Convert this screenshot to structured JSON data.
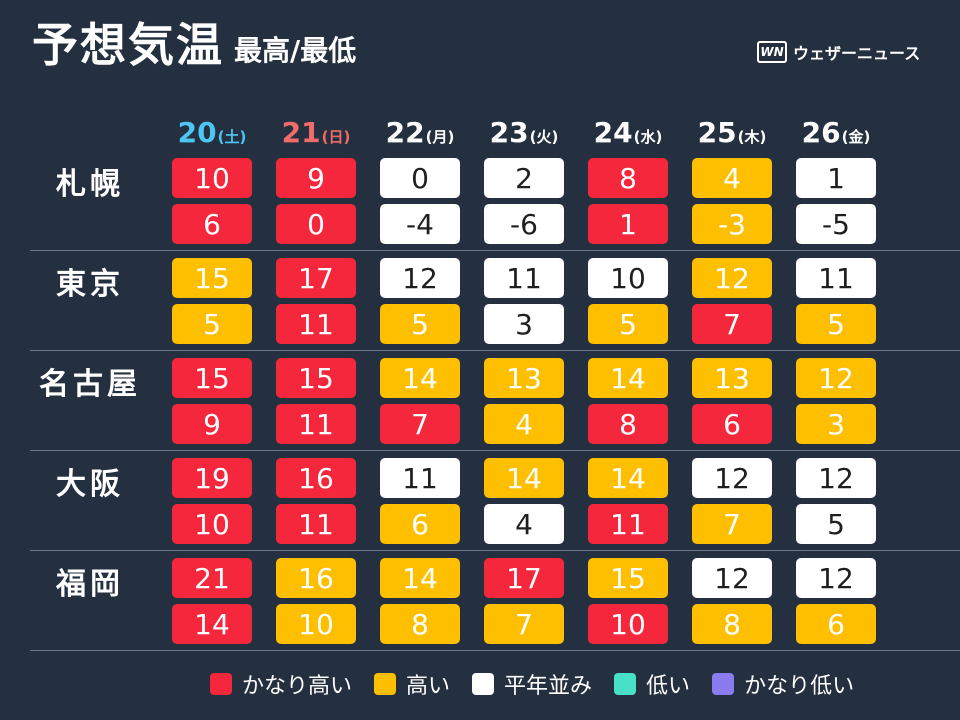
{
  "title": {
    "main": "予想気温",
    "sub": "最高/最低"
  },
  "logo": {
    "mark": "WN",
    "text": "ウェザーニュース"
  },
  "colors": {
    "very_high": "#f5273c",
    "high": "#fdbf00",
    "normal": "#ffffff",
    "low": "#48e0c6",
    "very_low": "#8a7cf0",
    "text_dark": "#1f1f1f",
    "text_light": "#ffffff",
    "saturday": "#4dc6f5",
    "sunday": "#f26b6b",
    "weekday": "#ffffff"
  },
  "days": [
    {
      "num": "20",
      "dow": "(土)",
      "kind": "saturday"
    },
    {
      "num": "21",
      "dow": "(日)",
      "kind": "sunday"
    },
    {
      "num": "22",
      "dow": "(月)",
      "kind": "weekday"
    },
    {
      "num": "23",
      "dow": "(火)",
      "kind": "weekday"
    },
    {
      "num": "24",
      "dow": "(水)",
      "kind": "weekday"
    },
    {
      "num": "25",
      "dow": "(木)",
      "kind": "weekday"
    },
    {
      "num": "26",
      "dow": "(金)",
      "kind": "weekday"
    }
  ],
  "cities": [
    {
      "name": "札幌",
      "max": [
        {
          "v": "10",
          "c": "very_high"
        },
        {
          "v": "9",
          "c": "very_high"
        },
        {
          "v": "0",
          "c": "normal"
        },
        {
          "v": "2",
          "c": "normal"
        },
        {
          "v": "8",
          "c": "very_high"
        },
        {
          "v": "4",
          "c": "high"
        },
        {
          "v": "1",
          "c": "normal"
        }
      ],
      "min": [
        {
          "v": "6",
          "c": "very_high"
        },
        {
          "v": "0",
          "c": "very_high"
        },
        {
          "v": "-4",
          "c": "normal"
        },
        {
          "v": "-6",
          "c": "normal"
        },
        {
          "v": "1",
          "c": "very_high"
        },
        {
          "v": "-3",
          "c": "high"
        },
        {
          "v": "-5",
          "c": "normal"
        }
      ]
    },
    {
      "name": "東京",
      "max": [
        {
          "v": "15",
          "c": "high"
        },
        {
          "v": "17",
          "c": "very_high"
        },
        {
          "v": "12",
          "c": "normal"
        },
        {
          "v": "11",
          "c": "normal"
        },
        {
          "v": "10",
          "c": "normal"
        },
        {
          "v": "12",
          "c": "high"
        },
        {
          "v": "11",
          "c": "normal"
        }
      ],
      "min": [
        {
          "v": "5",
          "c": "high"
        },
        {
          "v": "11",
          "c": "very_high"
        },
        {
          "v": "5",
          "c": "high"
        },
        {
          "v": "3",
          "c": "normal"
        },
        {
          "v": "5",
          "c": "high"
        },
        {
          "v": "7",
          "c": "very_high"
        },
        {
          "v": "5",
          "c": "high"
        }
      ]
    },
    {
      "name": "名古屋",
      "max": [
        {
          "v": "15",
          "c": "very_high"
        },
        {
          "v": "15",
          "c": "very_high"
        },
        {
          "v": "14",
          "c": "high"
        },
        {
          "v": "13",
          "c": "high"
        },
        {
          "v": "14",
          "c": "high"
        },
        {
          "v": "13",
          "c": "high"
        },
        {
          "v": "12",
          "c": "high"
        }
      ],
      "min": [
        {
          "v": "9",
          "c": "very_high"
        },
        {
          "v": "11",
          "c": "very_high"
        },
        {
          "v": "7",
          "c": "very_high"
        },
        {
          "v": "4",
          "c": "high"
        },
        {
          "v": "8",
          "c": "very_high"
        },
        {
          "v": "6",
          "c": "very_high"
        },
        {
          "v": "3",
          "c": "high"
        }
      ]
    },
    {
      "name": "大阪",
      "max": [
        {
          "v": "19",
          "c": "very_high"
        },
        {
          "v": "16",
          "c": "very_high"
        },
        {
          "v": "11",
          "c": "normal"
        },
        {
          "v": "14",
          "c": "high"
        },
        {
          "v": "14",
          "c": "high"
        },
        {
          "v": "12",
          "c": "normal"
        },
        {
          "v": "12",
          "c": "normal"
        }
      ],
      "min": [
        {
          "v": "10",
          "c": "very_high"
        },
        {
          "v": "11",
          "c": "very_high"
        },
        {
          "v": "6",
          "c": "high"
        },
        {
          "v": "4",
          "c": "normal"
        },
        {
          "v": "11",
          "c": "very_high"
        },
        {
          "v": "7",
          "c": "high"
        },
        {
          "v": "5",
          "c": "normal"
        }
      ]
    },
    {
      "name": "福岡",
      "max": [
        {
          "v": "21",
          "c": "very_high"
        },
        {
          "v": "16",
          "c": "high"
        },
        {
          "v": "14",
          "c": "high"
        },
        {
          "v": "17",
          "c": "very_high"
        },
        {
          "v": "15",
          "c": "high"
        },
        {
          "v": "12",
          "c": "normal"
        },
        {
          "v": "12",
          "c": "normal"
        }
      ],
      "min": [
        {
          "v": "14",
          "c": "very_high"
        },
        {
          "v": "10",
          "c": "high"
        },
        {
          "v": "8",
          "c": "high"
        },
        {
          "v": "7",
          "c": "high"
        },
        {
          "v": "10",
          "c": "very_high"
        },
        {
          "v": "8",
          "c": "high"
        },
        {
          "v": "6",
          "c": "high"
        }
      ]
    }
  ],
  "legend": [
    {
      "label": "かなり高い",
      "c": "very_high"
    },
    {
      "label": "高い",
      "c": "high"
    },
    {
      "label": "平年並み",
      "c": "normal"
    },
    {
      "label": "低い",
      "c": "low"
    },
    {
      "label": "かなり低い",
      "c": "very_low"
    }
  ]
}
